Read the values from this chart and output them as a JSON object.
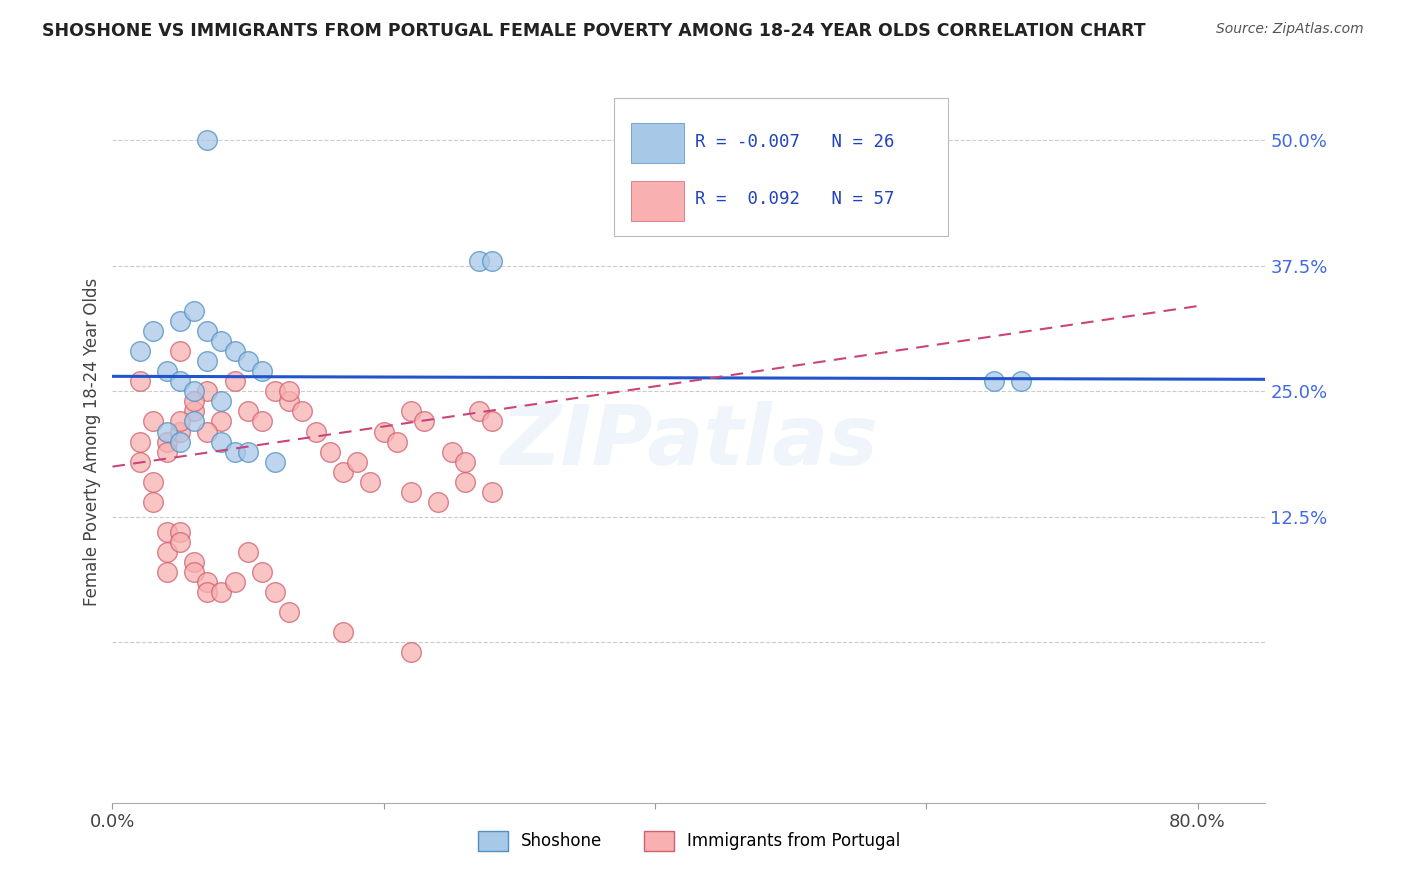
{
  "title": "SHOSHONE VS IMMIGRANTS FROM PORTUGAL FEMALE POVERTY AMONG 18-24 YEAR OLDS CORRELATION CHART",
  "source": "Source: ZipAtlas.com",
  "ylabel": "Female Poverty Among 18-24 Year Olds",
  "xlim": [
    0.0,
    0.85
  ],
  "ylim": [
    -0.16,
    0.56
  ],
  "xtick_positions": [
    0.0,
    0.2,
    0.4,
    0.6,
    0.8
  ],
  "xticklabels": [
    "0.0%",
    "",
    "",
    "",
    "80.0%"
  ],
  "ytick_positions": [
    0.0,
    0.125,
    0.25,
    0.375,
    0.5
  ],
  "yticklabels": [
    "",
    "12.5%",
    "25.0%",
    "37.5%",
    "50.0%"
  ],
  "grid_yticks": [
    0.0,
    0.125,
    0.25,
    0.375,
    0.5
  ],
  "shoshone_color": "#a8c8e8",
  "shoshone_edge": "#5090c0",
  "portugal_color": "#f8b0b0",
  "portugal_edge": "#d06070",
  "trend_blue_color": "#2255cc",
  "trend_pink_color": "#cc4477",
  "watermark": "ZIPatlas",
  "shoshone_x": [
    0.02,
    0.07,
    0.27,
    0.28,
    0.03,
    0.05,
    0.06,
    0.07,
    0.08,
    0.09,
    0.1,
    0.11,
    0.04,
    0.05,
    0.06,
    0.07,
    0.08,
    0.04,
    0.05,
    0.06,
    0.08,
    0.09,
    0.65,
    0.67,
    0.1,
    0.12
  ],
  "shoshone_y": [
    0.29,
    0.5,
    0.38,
    0.38,
    0.31,
    0.32,
    0.33,
    0.31,
    0.3,
    0.29,
    0.28,
    0.27,
    0.27,
    0.26,
    0.25,
    0.28,
    0.24,
    0.21,
    0.2,
    0.22,
    0.2,
    0.19,
    0.26,
    0.26,
    0.19,
    0.18
  ],
  "portugal_x": [
    0.02,
    0.05,
    0.03,
    0.04,
    0.05,
    0.04,
    0.06,
    0.05,
    0.07,
    0.06,
    0.08,
    0.07,
    0.09,
    0.1,
    0.11,
    0.12,
    0.13,
    0.14,
    0.13,
    0.15,
    0.16,
    0.17,
    0.18,
    0.19,
    0.2,
    0.21,
    0.22,
    0.23,
    0.25,
    0.26,
    0.27,
    0.28,
    0.22,
    0.24,
    0.26,
    0.28,
    0.02,
    0.02,
    0.03,
    0.03,
    0.04,
    0.04,
    0.04,
    0.05,
    0.05,
    0.06,
    0.06,
    0.07,
    0.07,
    0.08,
    0.09,
    0.1,
    0.11,
    0.12,
    0.13,
    0.17,
    0.22
  ],
  "portugal_y": [
    0.26,
    0.29,
    0.22,
    0.2,
    0.21,
    0.19,
    0.23,
    0.22,
    0.25,
    0.24,
    0.22,
    0.21,
    0.26,
    0.23,
    0.22,
    0.25,
    0.24,
    0.23,
    0.25,
    0.21,
    0.19,
    0.17,
    0.18,
    0.16,
    0.21,
    0.2,
    0.23,
    0.22,
    0.19,
    0.18,
    0.23,
    0.22,
    0.15,
    0.14,
    0.16,
    0.15,
    0.2,
    0.18,
    0.16,
    0.14,
    0.11,
    0.09,
    0.07,
    0.11,
    0.1,
    0.08,
    0.07,
    0.06,
    0.05,
    0.05,
    0.06,
    0.09,
    0.07,
    0.05,
    0.03,
    0.01,
    -0.01
  ],
  "shoshone_trend_y0": 0.265,
  "shoshone_trend_y1": 0.262,
  "portugal_trend_x0": 0.0,
  "portugal_trend_y0": 0.175,
  "portugal_trend_x1": 0.8,
  "portugal_trend_y1": 0.335
}
